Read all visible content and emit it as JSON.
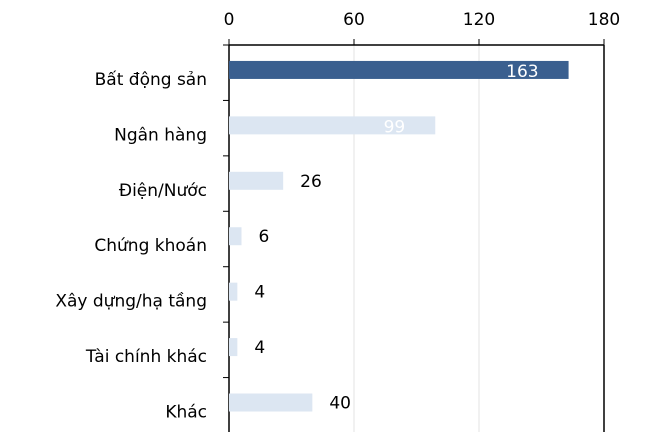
{
  "chart_data": {
    "type": "bar",
    "orientation": "horizontal",
    "categories": [
      "Bất động sản",
      "Ngân hàng",
      "Điện/Nước",
      "Chứng khoán",
      "Xây dựng/hạ tầng",
      "Tài chính khác",
      "Khác"
    ],
    "values": [
      163,
      99,
      26,
      6,
      4,
      4,
      40
    ],
    "colors": [
      "#3a5f8f",
      "#dce6f2",
      "#dce6f2",
      "#dce6f2",
      "#dce6f2",
      "#dce6f2",
      "#dce6f2"
    ],
    "xlim": [
      0,
      180
    ],
    "xticks": [
      0,
      60,
      120,
      180
    ],
    "grid": true
  }
}
